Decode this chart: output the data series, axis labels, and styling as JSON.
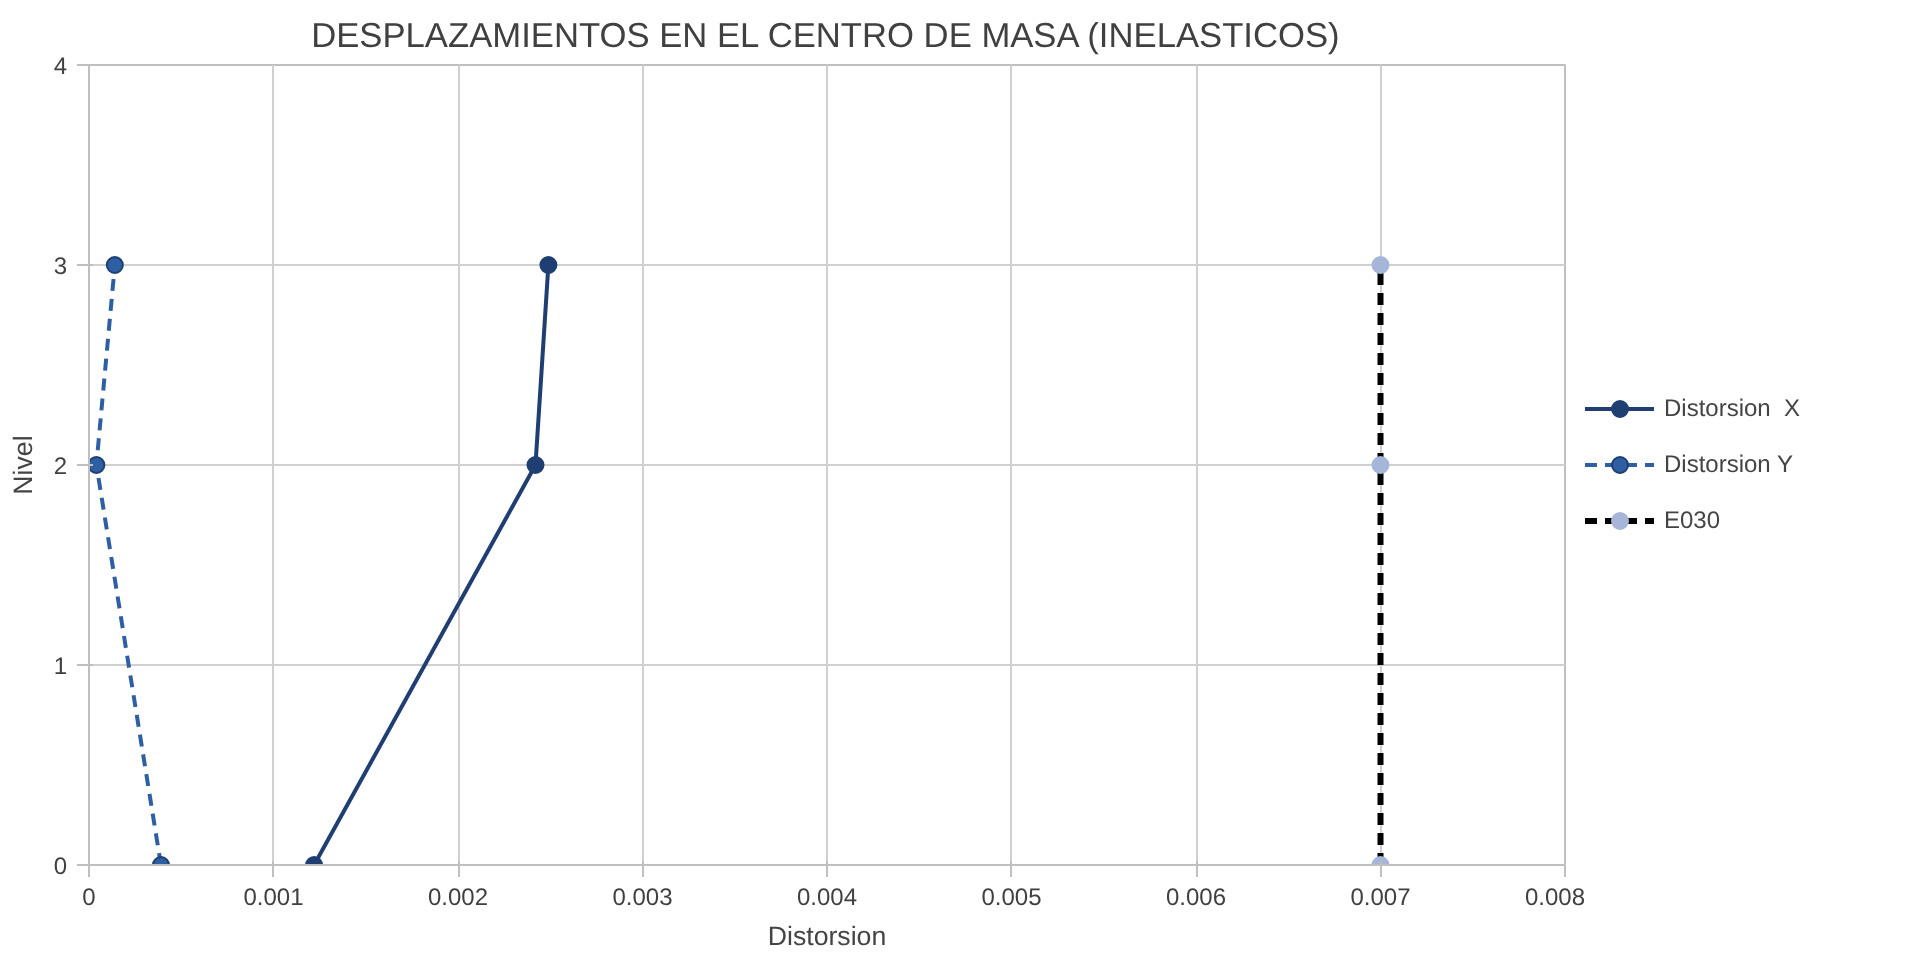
{
  "chart_data": {
    "type": "line",
    "title": "DESPLAZAMIENTOS EN EL CENTRO DE MASA (INELASTICOS)",
    "xlabel": "Distorsion",
    "ylabel": "Nivel",
    "xlim": [
      0,
      0.008
    ],
    "xticks": [
      0,
      0.001,
      0.002,
      0.003,
      0.004,
      0.005,
      0.006,
      0.007,
      0.008
    ],
    "ylim": [
      0,
      4
    ],
    "yticks": [
      0,
      1,
      2,
      3,
      4
    ],
    "grid": true,
    "legend": "right",
    "marker": "circle",
    "series": [
      {
        "name": "Distorsion  X",
        "color": "#1f3f73",
        "x": [
          0.00122,
          0.00242,
          0.00249
        ],
        "values": [
          0,
          2,
          3
        ],
        "line_style": "solid"
      },
      {
        "name": "Distorsion Y",
        "color": "#2e5fa3",
        "x": [
          0.00039,
          4e-05,
          0.00014
        ],
        "values": [
          0,
          2,
          3
        ],
        "line_style": "dashed"
      },
      {
        "name": "E030",
        "color": "#000000",
        "x": [
          0.007,
          0.007,
          0.007
        ],
        "values": [
          0,
          2,
          3
        ],
        "line_style": "dashed"
      }
    ]
  }
}
